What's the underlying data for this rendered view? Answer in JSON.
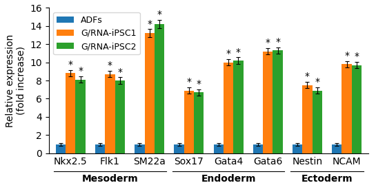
{
  "chart_data": {
    "type": "bar",
    "categories": [
      "Nkx2.5",
      "Flk1",
      "SM22a",
      "Sox17",
      "Gata4",
      "Gata6",
      "Nestin",
      "NCAM"
    ],
    "series": [
      {
        "name": "ADFs",
        "values": [
          1.0,
          1.0,
          1.0,
          1.0,
          1.0,
          1.0,
          1.0,
          1.0
        ],
        "errors": [
          0.15,
          0.15,
          0.15,
          0.15,
          0.15,
          0.15,
          0.15,
          0.15
        ]
      },
      {
        "name": "G/RNA-iPSC1",
        "values": [
          8.8,
          8.7,
          13.2,
          6.9,
          10.0,
          11.2,
          7.5,
          9.8
        ],
        "errors": [
          0.35,
          0.35,
          0.45,
          0.35,
          0.35,
          0.35,
          0.35,
          0.35
        ]
      },
      {
        "name": "G/RNA-iPSC2",
        "values": [
          8.1,
          8.0,
          14.2,
          6.7,
          10.2,
          11.3,
          6.9,
          9.7
        ],
        "errors": [
          0.35,
          0.35,
          0.45,
          0.35,
          0.35,
          0.35,
          0.35,
          0.35
        ]
      }
    ],
    "groups": [
      {
        "name": "Mesoderm",
        "categories": [
          "Nkx2.5",
          "Flk1",
          "SM22a"
        ]
      },
      {
        "name": "Endoderm",
        "categories": [
          "Sox17",
          "Gata4",
          "Gata6"
        ]
      },
      {
        "name": "Ectoderm",
        "categories": [
          "Nestin",
          "NCAM"
        ]
      }
    ],
    "annotations": [
      {
        "text": "*",
        "series": "G/RNA-iPSC1"
      },
      {
        "text": "*",
        "series": "G/RNA-iPSC2"
      }
    ],
    "ylabel": "Relative expression\n(fold increase)",
    "ylim": [
      0,
      16
    ],
    "yticks": [
      0,
      2,
      4,
      6,
      8,
      10,
      12,
      14,
      16
    ],
    "legend": "upper left"
  }
}
